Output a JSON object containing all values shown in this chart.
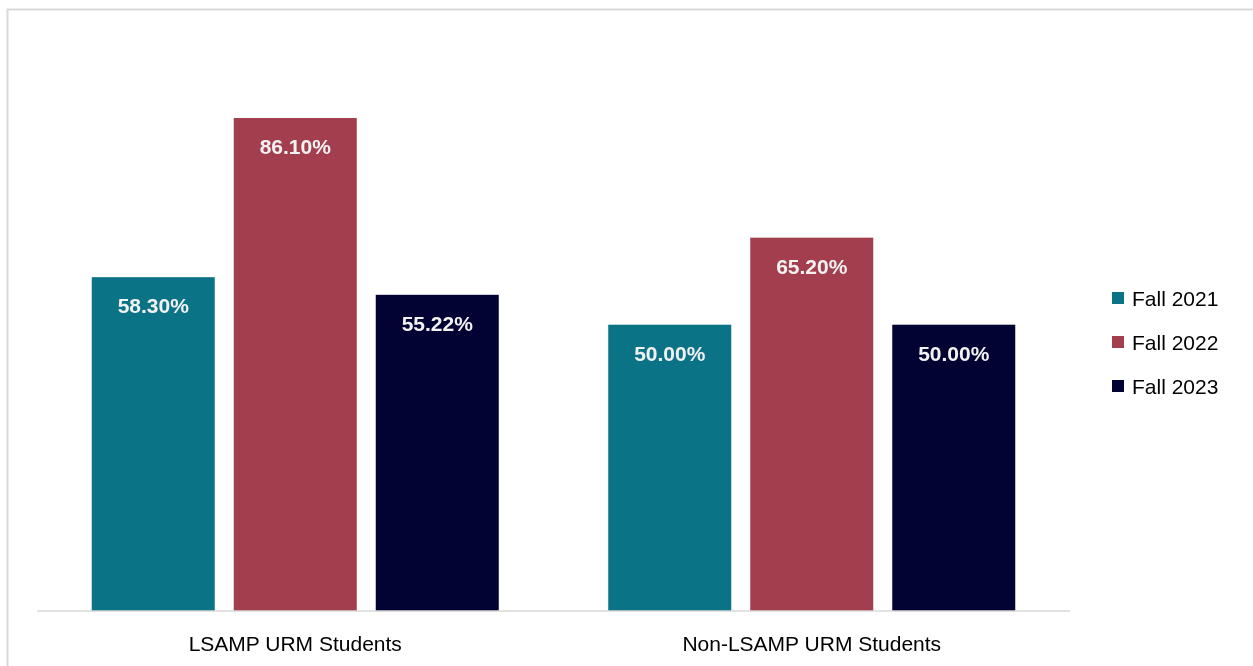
{
  "chart_data": {
    "type": "bar",
    "categories": [
      "LSAMP URM Students",
      "Non-LSAMP URM Students"
    ],
    "series": [
      {
        "name": "Fall 2021",
        "color": "#0b7386",
        "values": [
          58.3,
          50.0
        ],
        "value_labels": [
          "58.30%",
          "50.00%"
        ]
      },
      {
        "name": "Fall 2022",
        "color": "#a33e4e",
        "values": [
          86.1,
          65.2
        ],
        "value_labels": [
          "86.10%",
          "65.20%"
        ]
      },
      {
        "name": "Fall 2023",
        "color": "#020233",
        "values": [
          55.22,
          50.0
        ],
        "value_labels": [
          "55.22%",
          "50.00%"
        ]
      }
    ],
    "legend": "right"
  }
}
